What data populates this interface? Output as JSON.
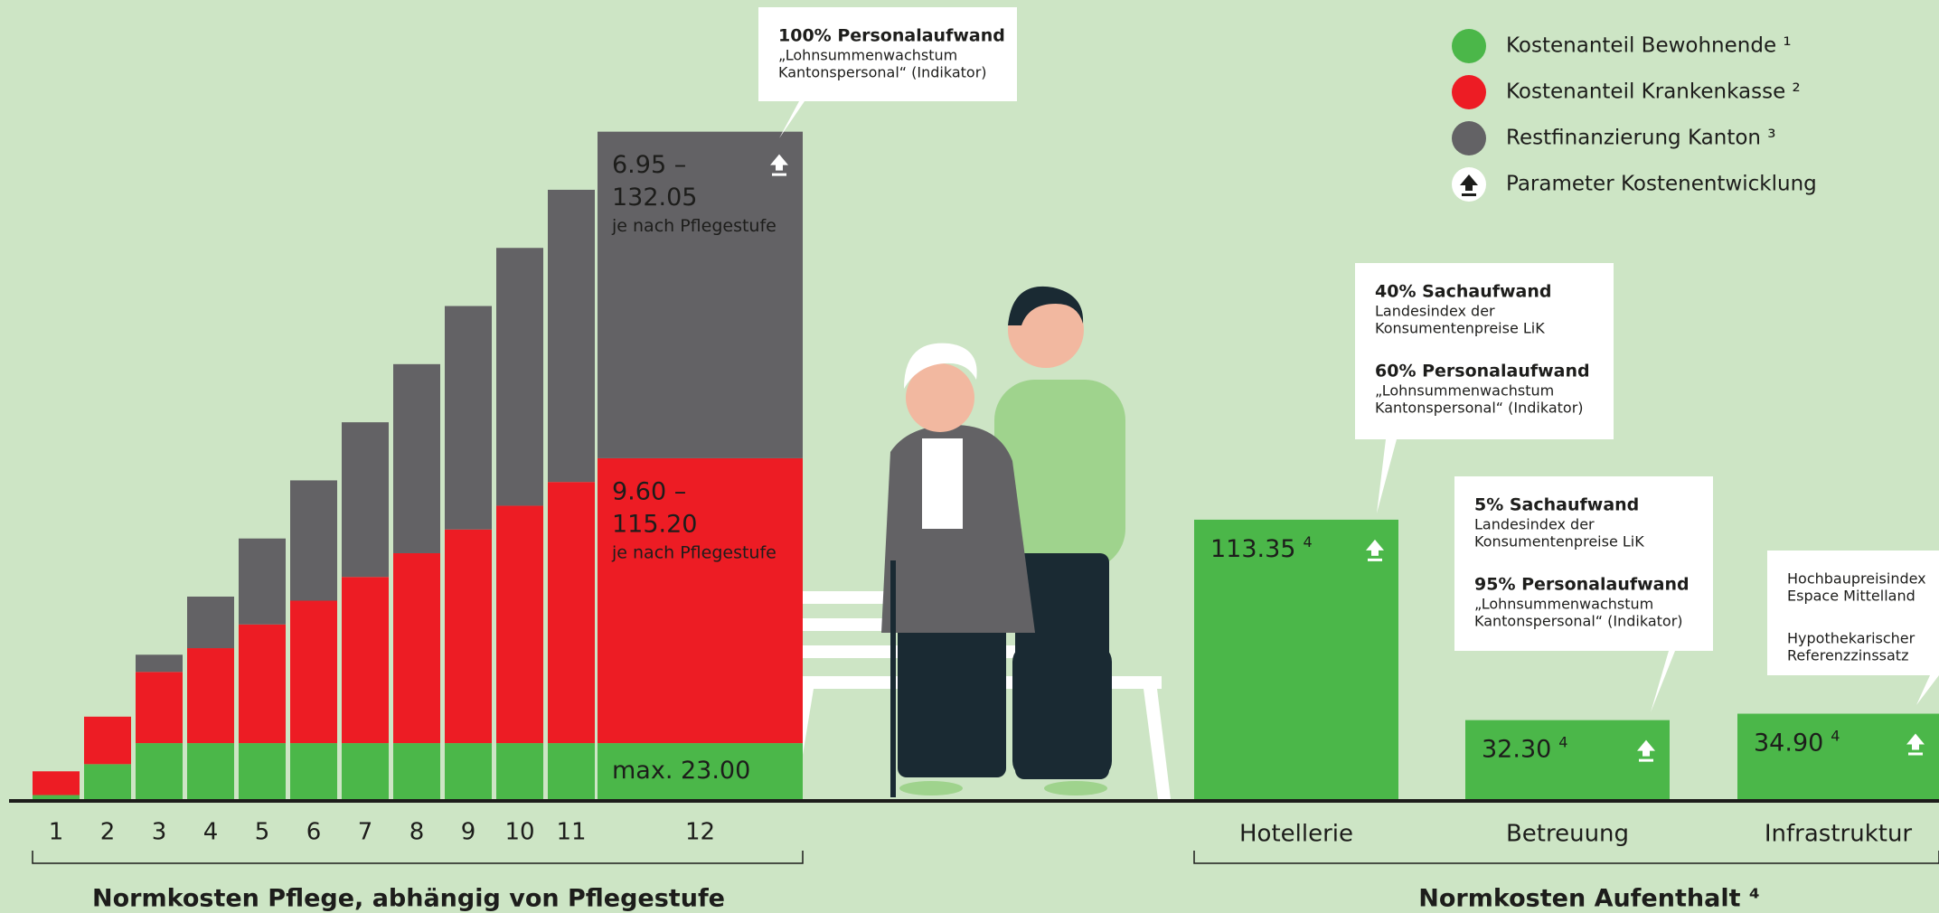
{
  "legend": {
    "position": "top-right",
    "parameter_label": "Parameter Kostenentwicklung"
  },
  "chart_data": [
    {
      "type": "bar",
      "stacked": true,
      "title": "Normkosten Pflege, abhängig von Pflegestufe",
      "categories": [
        "1",
        "2",
        "3",
        "4",
        "5",
        "6",
        "7",
        "8",
        "9",
        "10",
        "11",
        "12"
      ],
      "ylim": [
        0,
        280
      ],
      "series": [
        {
          "name": "Kostenanteil Bewohnende ¹",
          "color": "#4bb749",
          "values": [
            2,
            14.5,
            23,
            23,
            23,
            23,
            23,
            23,
            23,
            23,
            23,
            23
          ],
          "range_label": [
            "max. 23.00"
          ]
        },
        {
          "name": "Kostenanteil Krankenkasse ²",
          "color": "#ed1c24",
          "values": [
            9.6,
            19.2,
            28.8,
            38.4,
            48,
            57.6,
            67.2,
            76.8,
            86.4,
            96,
            105.6,
            115.2
          ],
          "range_label": [
            "9.60 –",
            "115.20",
            "je nach Pflegestufe"
          ]
        },
        {
          "name": "Restfinanzierung Kanton ³",
          "color": "#636265",
          "values": [
            0,
            0,
            6.95,
            20.85,
            34.75,
            48.65,
            62.55,
            76.45,
            90.35,
            104.25,
            118.15,
            132.05
          ],
          "range_label": [
            "6.95 –",
            "132.05",
            "je nach Pflegestufe"
          ]
        }
      ],
      "callout": {
        "blocks": [
          {
            "heading": "100% Personalaufwand",
            "lines": [
              "„Lohnsummenwachstum",
              "Kantonspersonal“ (Indikator)"
            ]
          }
        ]
      }
    },
    {
      "type": "bar",
      "title": "Normkosten Aufenthalt ⁴",
      "categories": [
        "Hotellerie",
        "Betreuung",
        "Infrastruktur"
      ],
      "values": [
        113.35,
        32.3,
        34.9
      ],
      "value_labels": [
        "113.35",
        "32.30",
        "34.90"
      ],
      "footnote": "4",
      "color": "#4bb749",
      "ylim": [
        0,
        280
      ],
      "callouts": [
        {
          "blocks": [
            {
              "heading": "40% Sachaufwand",
              "lines": [
                "Landesindex der",
                "Konsumentenpreise LiK"
              ]
            },
            {
              "heading": "60% Personalaufwand",
              "lines": [
                "„Lohnsummenwachstum",
                "Kantonspersonal“ (Indikator)"
              ]
            }
          ]
        },
        {
          "blocks": [
            {
              "heading": "5% Sachaufwand",
              "lines": [
                "Landesindex der",
                "Konsumentenpreise LiK"
              ]
            },
            {
              "heading": "95% Personalaufwand",
              "lines": [
                "„Lohnsummenwachstum",
                "Kantonspersonal“ (Indikator)"
              ]
            }
          ]
        },
        {
          "blocks": [
            {
              "lines": [
                "Hochbaupreisindex",
                "Espace Mittelland"
              ]
            },
            {
              "lines": [
                "Hypothekarischer",
                "Referenzzinssatz"
              ]
            }
          ]
        }
      ]
    }
  ]
}
